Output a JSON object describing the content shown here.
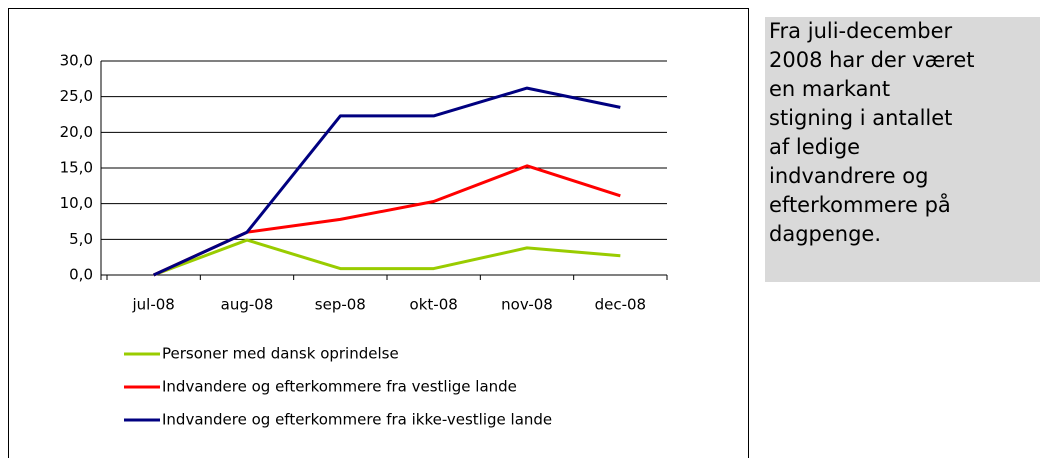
{
  "chart_data": {
    "type": "line",
    "categories": [
      "jul-08",
      "aug-08",
      "sep-08",
      "okt-08",
      "nov-08",
      "dec-08"
    ],
    "series": [
      {
        "name": "Personer med dansk oprindelse",
        "color": "#99cc00",
        "values": [
          0,
          4.9,
          0.9,
          0.9,
          3.8,
          2.7
        ]
      },
      {
        "name": "Indvandere og efterkommere fra vestlige lande",
        "color": "#ff0000",
        "values": [
          0,
          6.0,
          7.8,
          10.3,
          15.3,
          11.1
        ]
      },
      {
        "name": "Indvandere og efterkommere fra ikke-vestlige lande",
        "color": "#000080",
        "values": [
          0,
          6.0,
          22.3,
          22.3,
          26.2,
          23.5
        ]
      }
    ],
    "ylim": [
      0,
      30
    ],
    "yticks": [
      {
        "value": 0,
        "label": "0,0"
      },
      {
        "value": 5,
        "label": "5,0"
      },
      {
        "value": 10,
        "label": "10,0"
      },
      {
        "value": 15,
        "label": "15,0"
      },
      {
        "value": 20,
        "label": "20,0"
      },
      {
        "value": 25,
        "label": "25,0"
      },
      {
        "value": 30,
        "label": "30,0"
      }
    ],
    "grid": true,
    "legend": "bottom"
  },
  "side_text": {
    "lines": [
      "Fra juli-december",
      "2008 har der været",
      "en markant",
      "stigning i antallet",
      "af ledige",
      "indvandrere og",
      "efterkommere på",
      "dagpenge."
    ]
  }
}
